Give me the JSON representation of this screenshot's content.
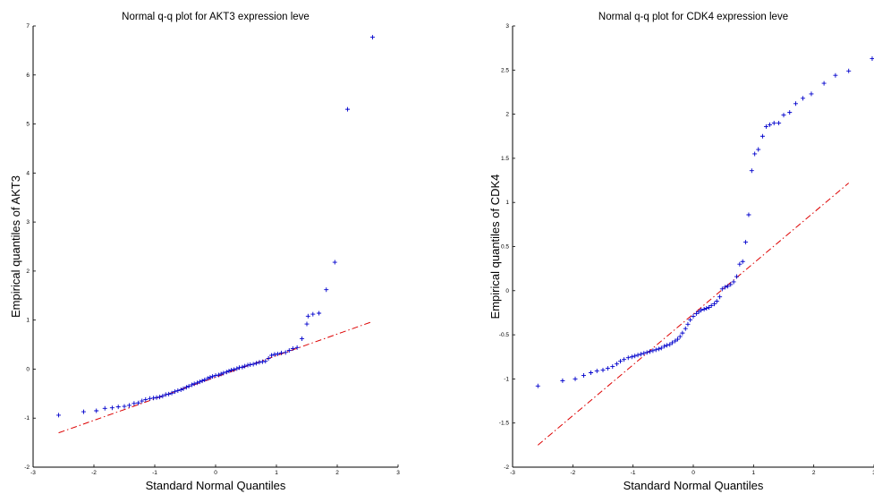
{
  "colors": {
    "points": "#0000cc",
    "reference_line": "#dd0000",
    "axis": "#000000"
  },
  "chart_data": [
    {
      "type": "scatter",
      "title": "Normal q-q plot for AKT3 expression leve",
      "xlabel": "Standard Normal Quantiles",
      "ylabel": "Empirical quantiles of AKT3",
      "xlim": [
        -3,
        3
      ],
      "ylim": [
        -2,
        7
      ],
      "xticks": [
        -3,
        -2,
        -1,
        0,
        1,
        2,
        3
      ],
      "yticks": [
        -2,
        -1,
        0,
        1,
        2,
        3,
        4,
        5,
        6,
        7
      ],
      "marker": "+",
      "grid": false,
      "reference_line": {
        "style": "dash-dot",
        "x": [
          -2.58,
          2.58
        ],
        "y": [
          -1.3,
          0.97
        ]
      },
      "points": [
        [
          -2.58,
          -0.94
        ],
        [
          -2.17,
          -0.87
        ],
        [
          -1.96,
          -0.85
        ],
        [
          -1.82,
          -0.8
        ],
        [
          -1.7,
          -0.79
        ],
        [
          -1.6,
          -0.77
        ],
        [
          -1.5,
          -0.76
        ],
        [
          -1.42,
          -0.74
        ],
        [
          -1.34,
          -0.7
        ],
        [
          -1.27,
          -0.69
        ],
        [
          -1.21,
          -0.65
        ],
        [
          -1.15,
          -0.62
        ],
        [
          -1.08,
          -0.6
        ],
        [
          -1.02,
          -0.59
        ],
        [
          -0.97,
          -0.58
        ],
        [
          -0.92,
          -0.57
        ],
        [
          -0.87,
          -0.55
        ],
        [
          -0.82,
          -0.52
        ],
        [
          -0.77,
          -0.51
        ],
        [
          -0.72,
          -0.49
        ],
        [
          -0.67,
          -0.46
        ],
        [
          -0.62,
          -0.44
        ],
        [
          -0.57,
          -0.42
        ],
        [
          -0.53,
          -0.4
        ],
        [
          -0.48,
          -0.37
        ],
        [
          -0.44,
          -0.35
        ],
        [
          -0.39,
          -0.32
        ],
        [
          -0.35,
          -0.3
        ],
        [
          -0.3,
          -0.28
        ],
        [
          -0.26,
          -0.26
        ],
        [
          -0.22,
          -0.24
        ],
        [
          -0.18,
          -0.22
        ],
        [
          -0.13,
          -0.19
        ],
        [
          -0.09,
          -0.17
        ],
        [
          -0.05,
          -0.15
        ],
        [
          0.0,
          -0.13
        ],
        [
          0.05,
          -0.12
        ],
        [
          0.09,
          -0.1
        ],
        [
          0.13,
          -0.08
        ],
        [
          0.18,
          -0.06
        ],
        [
          0.22,
          -0.04
        ],
        [
          0.26,
          -0.02
        ],
        [
          0.3,
          -0.01
        ],
        [
          0.35,
          0.01
        ],
        [
          0.39,
          0.03
        ],
        [
          0.44,
          0.04
        ],
        [
          0.48,
          0.06
        ],
        [
          0.53,
          0.08
        ],
        [
          0.57,
          0.09
        ],
        [
          0.62,
          0.1
        ],
        [
          0.67,
          0.12
        ],
        [
          0.72,
          0.14
        ],
        [
          0.77,
          0.15
        ],
        [
          0.82,
          0.16
        ],
        [
          0.87,
          0.22
        ],
        [
          0.92,
          0.28
        ],
        [
          0.97,
          0.3
        ],
        [
          1.02,
          0.31
        ],
        [
          1.08,
          0.33
        ],
        [
          1.15,
          0.34
        ],
        [
          1.21,
          0.38
        ],
        [
          1.27,
          0.42
        ],
        [
          1.34,
          0.44
        ],
        [
          1.42,
          0.62
        ],
        [
          1.5,
          0.92
        ],
        [
          1.52,
          1.08
        ],
        [
          1.6,
          1.12
        ],
        [
          1.7,
          1.14
        ],
        [
          1.82,
          1.62
        ],
        [
          1.96,
          2.18
        ],
        [
          2.17,
          5.3
        ],
        [
          2.58,
          6.77
        ]
      ]
    },
    {
      "type": "scatter",
      "title": "Normal q-q plot for CDK4 expression leve",
      "xlabel": "Standard Normal Quantiles",
      "ylabel": "Empirical quantiles of CDK4",
      "xlim": [
        -3,
        3
      ],
      "ylim": [
        -2,
        3
      ],
      "xticks": [
        -3,
        -2,
        -1,
        0,
        1,
        2,
        3
      ],
      "yticks": [
        -2,
        -1.5,
        -1,
        -0.5,
        0,
        0.5,
        1,
        1.5,
        2,
        2.5,
        3
      ],
      "marker": "+",
      "grid": false,
      "reference_line": {
        "style": "dash-dot",
        "x": [
          -2.58,
          2.58
        ],
        "y": [
          -1.75,
          1.22
        ]
      },
      "points": [
        [
          -2.58,
          -1.08
        ],
        [
          -2.17,
          -1.02
        ],
        [
          -1.96,
          -1.0
        ],
        [
          -1.82,
          -0.96
        ],
        [
          -1.7,
          -0.93
        ],
        [
          -1.6,
          -0.91
        ],
        [
          -1.5,
          -0.9
        ],
        [
          -1.42,
          -0.88
        ],
        [
          -1.34,
          -0.86
        ],
        [
          -1.27,
          -0.83
        ],
        [
          -1.21,
          -0.8
        ],
        [
          -1.15,
          -0.78
        ],
        [
          -1.08,
          -0.76
        ],
        [
          -1.02,
          -0.75
        ],
        [
          -0.97,
          -0.74
        ],
        [
          -0.92,
          -0.73
        ],
        [
          -0.87,
          -0.72
        ],
        [
          -0.82,
          -0.71
        ],
        [
          -0.77,
          -0.7
        ],
        [
          -0.72,
          -0.69
        ],
        [
          -0.67,
          -0.68
        ],
        [
          -0.62,
          -0.67
        ],
        [
          -0.57,
          -0.66
        ],
        [
          -0.53,
          -0.65
        ],
        [
          -0.48,
          -0.63
        ],
        [
          -0.44,
          -0.62
        ],
        [
          -0.39,
          -0.61
        ],
        [
          -0.35,
          -0.59
        ],
        [
          -0.3,
          -0.57
        ],
        [
          -0.26,
          -0.55
        ],
        [
          -0.22,
          -0.52
        ],
        [
          -0.18,
          -0.48
        ],
        [
          -0.13,
          -0.43
        ],
        [
          -0.09,
          -0.38
        ],
        [
          -0.05,
          -0.33
        ],
        [
          0.0,
          -0.29
        ],
        [
          0.05,
          -0.26
        ],
        [
          0.09,
          -0.24
        ],
        [
          0.13,
          -0.22
        ],
        [
          0.18,
          -0.21
        ],
        [
          0.22,
          -0.2
        ],
        [
          0.26,
          -0.19
        ],
        [
          0.3,
          -0.17
        ],
        [
          0.35,
          -0.15
        ],
        [
          0.39,
          -0.12
        ],
        [
          0.44,
          -0.07
        ],
        [
          0.48,
          0.02
        ],
        [
          0.53,
          0.04
        ],
        [
          0.57,
          0.05
        ],
        [
          0.62,
          0.07
        ],
        [
          0.67,
          0.1
        ],
        [
          0.72,
          0.16
        ],
        [
          0.77,
          0.3
        ],
        [
          0.82,
          0.33
        ],
        [
          0.87,
          0.55
        ],
        [
          0.92,
          0.86
        ],
        [
          0.97,
          1.36
        ],
        [
          1.02,
          1.55
        ],
        [
          1.08,
          1.6
        ],
        [
          1.15,
          1.75
        ],
        [
          1.21,
          1.86
        ],
        [
          1.27,
          1.88
        ],
        [
          1.34,
          1.9
        ],
        [
          1.42,
          1.9
        ],
        [
          1.5,
          1.99
        ],
        [
          1.6,
          2.02
        ],
        [
          1.7,
          2.12
        ],
        [
          1.82,
          2.18
        ],
        [
          1.96,
          2.23
        ],
        [
          2.17,
          2.35
        ],
        [
          2.36,
          2.44
        ],
        [
          2.58,
          2.49
        ],
        [
          2.97,
          2.63
        ]
      ]
    }
  ]
}
